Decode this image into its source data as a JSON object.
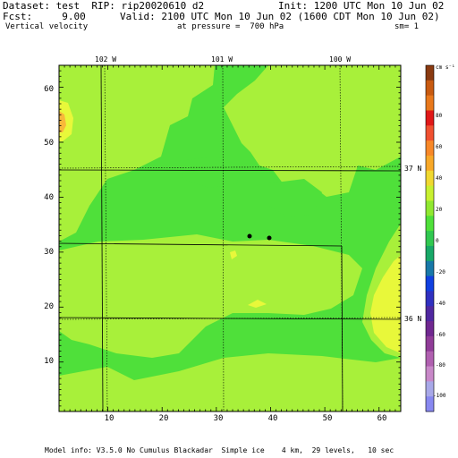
{
  "header": {
    "dataset": "Dataset: test  RIP: rip20020610 d2",
    "init": "Init: 1200 UTC Mon 10 Jun 02",
    "fcst": "Fcst:     9.00",
    "valid": "Valid: 2100 UTC Mon 10 Jun 02 (1600 CDT Mon 10 Jun 02)",
    "field": "Vertical velocity",
    "pressure": "at pressure =  700 hPa",
    "sm": "sm= 1"
  },
  "map": {
    "top_longitudes": [
      "102 W",
      "101 W",
      "100 W"
    ],
    "right_latitudes": [
      "37 N",
      "36 N"
    ],
    "y_ticks": [
      10,
      20,
      30,
      40,
      50,
      60
    ],
    "x_ticks": [
      10,
      20,
      30,
      40,
      50,
      60
    ],
    "colors": {
      "base": "#4fe03a",
      "yellow_green": "#a8f03a",
      "yellow": "#e8f83a",
      "orange": "#f8b83a"
    }
  },
  "colorbar": {
    "unit": "cm s⁻¹",
    "labels": [
      "80",
      "60",
      "40",
      "20",
      "0",
      "-20",
      "-40",
      "-60",
      "-80",
      "-100"
    ],
    "colors": [
      "#8a3a10",
      "#c85a10",
      "#e8781c",
      "#e01818",
      "#f05030",
      "#f88828",
      "#f8a828",
      "#f0d830",
      "#c8f030",
      "#90e830",
      "#4fe03a",
      "#30c850",
      "#18a868",
      "#1878a8",
      "#1040e0",
      "#3030c0",
      "#5028a0",
      "#702890",
      "#903c98",
      "#b060b0",
      "#c888c8",
      "#a8a8e8",
      "#8888f0"
    ]
  },
  "footer": {
    "info": "Model info: V3.5.0 No Cumulus Blackadar  Simple ice    4 km,  29 levels,   10 sec"
  }
}
